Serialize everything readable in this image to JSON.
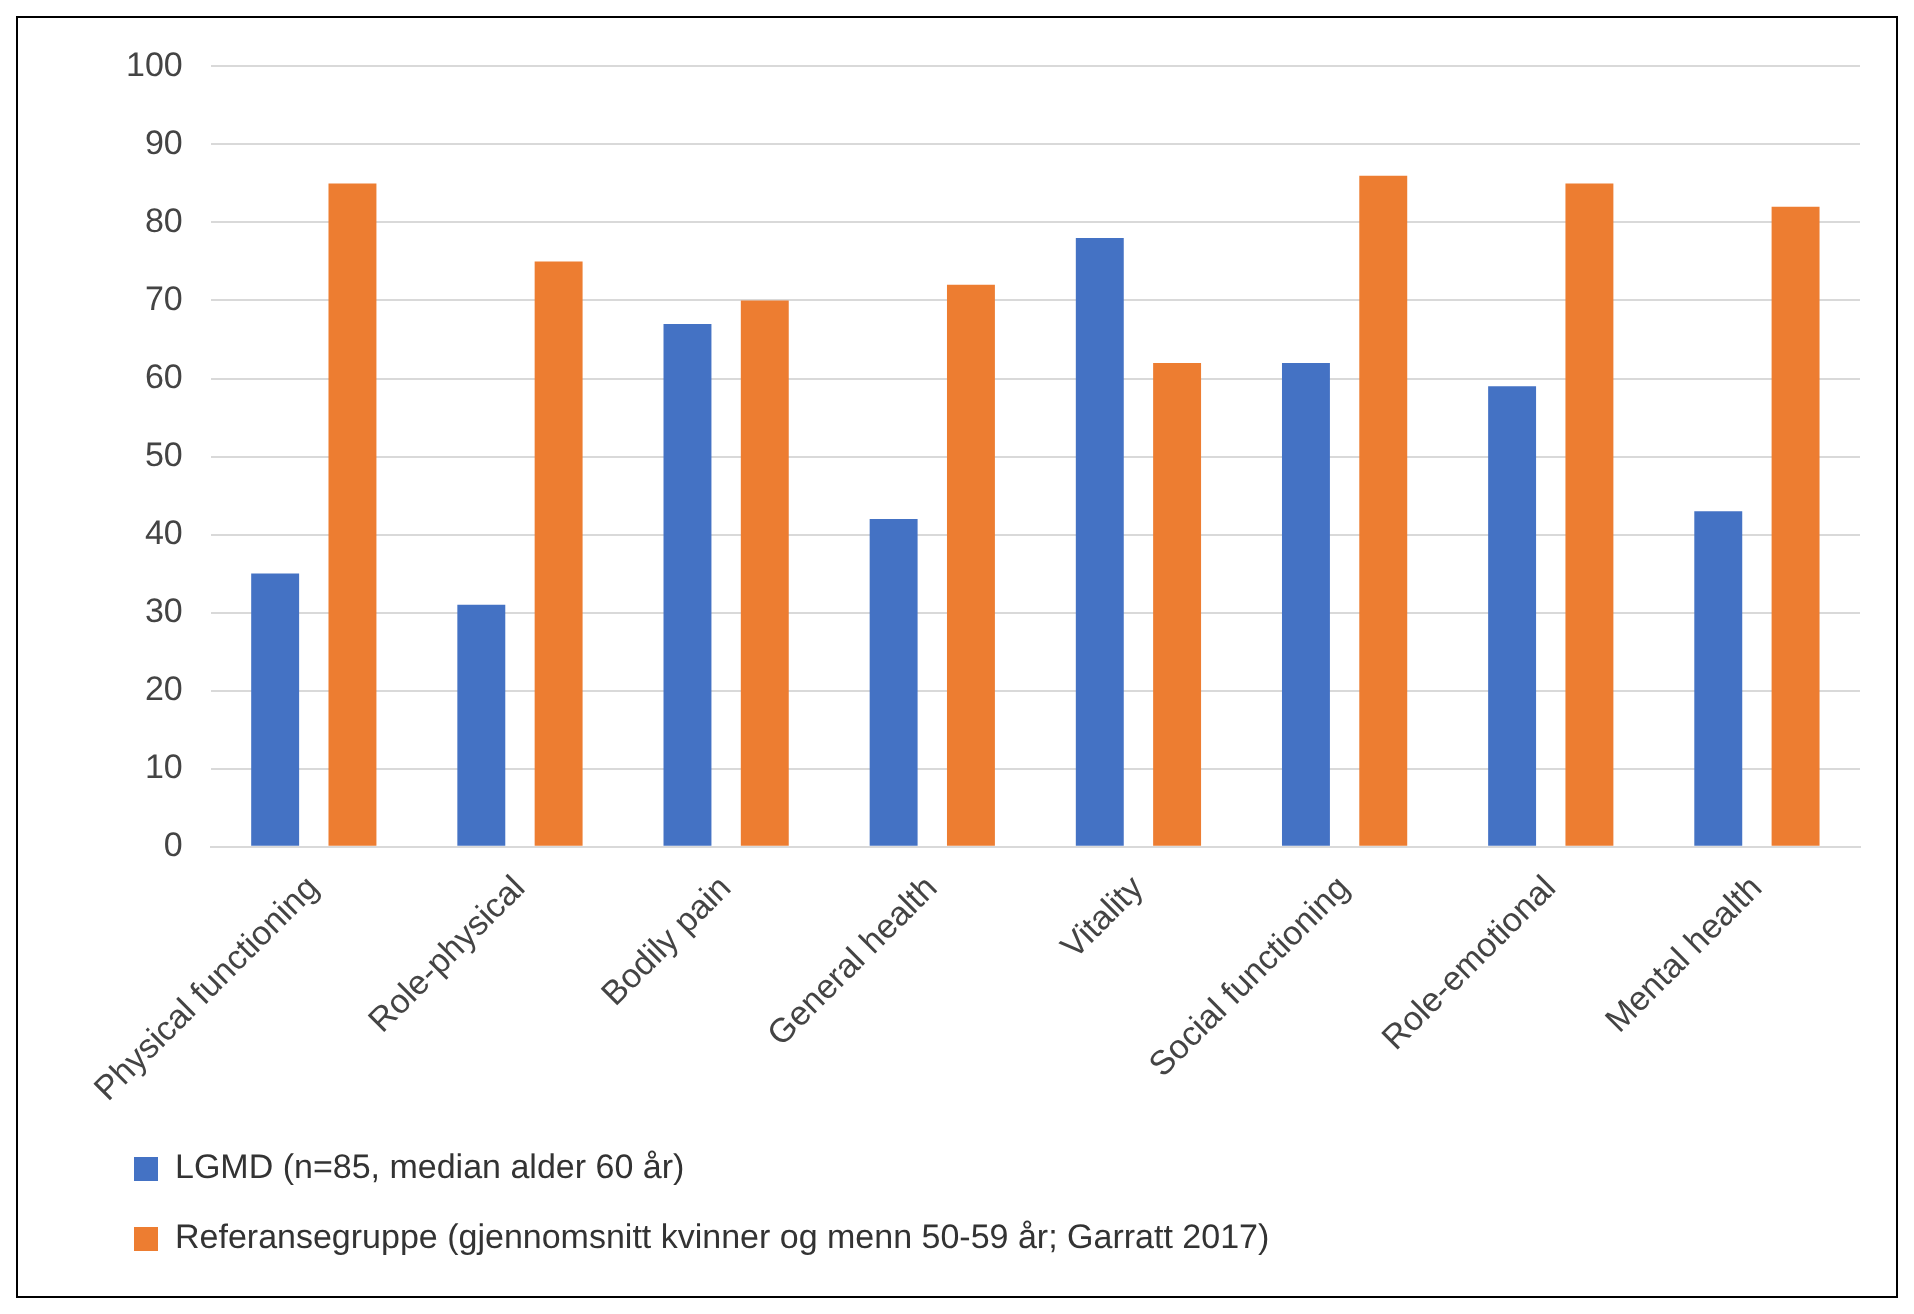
{
  "chart_data": {
    "type": "bar",
    "categories": [
      "Physical functioning",
      "Role-physical",
      "Bodily pain",
      "General health",
      "Vitality",
      "Social functioning",
      "Role-emotional",
      "Mental health"
    ],
    "series": [
      {
        "name": "LGMD (n=85, median alder 60 år)",
        "color": "#4472c4",
        "values": [
          35,
          31,
          67,
          42,
          78,
          62,
          59,
          43
        ]
      },
      {
        "name": "Referansegruppe (gjennomsnitt kvinner og menn 50-59 år; Garratt 2017)",
        "color": "#ed7d31",
        "values": [
          85,
          75,
          70,
          72,
          62,
          86,
          85,
          82
        ]
      }
    ],
    "ylim": [
      0,
      100
    ],
    "yticks": [
      0,
      10,
      20,
      30,
      40,
      50,
      60,
      70,
      80,
      90,
      100
    ],
    "grid": "y",
    "legend": "bottom"
  }
}
